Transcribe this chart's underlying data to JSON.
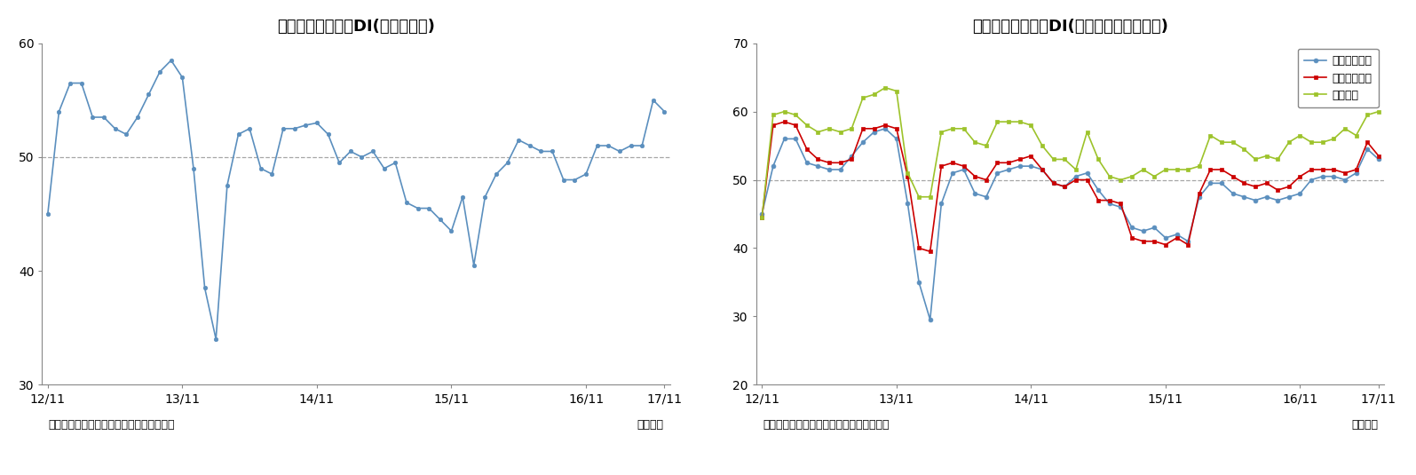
{
  "title1": "景気の先行き判断DI(季節調整値)",
  "title2": "景気の先行き判断DI(分野別、季節調整値)",
  "source_label": "（資料）内閣府「景気ウォッチャー調査」",
  "month_label": "（月次）",
  "xtick_labels": [
    "12/11",
    "13/11",
    "14/11",
    "15/11",
    "16/11",
    "17/11"
  ],
  "chart1_ylim": [
    30,
    60
  ],
  "chart1_yticks": [
    30,
    40,
    50,
    60
  ],
  "chart2_ylim": [
    20,
    70
  ],
  "chart2_yticks": [
    20,
    30,
    40,
    50,
    60,
    70
  ],
  "reference_line": 50,
  "chart1_color": "#5B8FBE",
  "chart1_data": [
    45.0,
    54.0,
    56.5,
    56.5,
    53.5,
    53.5,
    52.5,
    52.0,
    53.5,
    55.5,
    57.5,
    58.5,
    57.0,
    49.0,
    38.5,
    34.0,
    47.5,
    52.0,
    52.5,
    49.0,
    48.5,
    52.5,
    52.5,
    52.8,
    53.0,
    52.0,
    49.5,
    50.5,
    50.0,
    50.5,
    49.0,
    49.5,
    46.0,
    45.5,
    45.5,
    44.5,
    43.5,
    46.5,
    40.5,
    46.5,
    48.5,
    49.5,
    51.5,
    51.0,
    50.5,
    50.5,
    48.0,
    48.0,
    48.5,
    51.0,
    51.0,
    50.5,
    51.0,
    51.0,
    55.0,
    54.0
  ],
  "legend2_labels": [
    "家計動向関連",
    "企業動向関連",
    "雇用関連"
  ],
  "legend2_colors": [
    "#5B8FBE",
    "#CC0000",
    "#9DC32B"
  ],
  "legend2_markers": [
    "o",
    "s",
    "s"
  ],
  "chart2_household": [
    45.0,
    52.0,
    56.0,
    56.0,
    52.5,
    52.0,
    51.5,
    51.5,
    53.5,
    55.5,
    57.0,
    57.5,
    56.0,
    46.5,
    35.0,
    29.5,
    46.5,
    51.0,
    51.5,
    48.0,
    47.5,
    51.0,
    51.5,
    52.0,
    52.0,
    51.5,
    49.5,
    49.0,
    50.5,
    51.0,
    48.5,
    46.5,
    46.0,
    43.0,
    42.5,
    43.0,
    41.5,
    42.0,
    41.0,
    47.5,
    49.5,
    49.5,
    48.0,
    47.5,
    47.0,
    47.5,
    47.0,
    47.5,
    48.0,
    50.0,
    50.5,
    50.5,
    50.0,
    51.0,
    54.5,
    53.0
  ],
  "chart2_enterprise": [
    44.5,
    58.0,
    58.5,
    58.0,
    54.5,
    53.0,
    52.5,
    52.5,
    53.0,
    57.5,
    57.5,
    58.0,
    57.5,
    50.5,
    40.0,
    39.5,
    52.0,
    52.5,
    52.0,
    50.5,
    50.0,
    52.5,
    52.5,
    53.0,
    53.5,
    51.5,
    49.5,
    49.0,
    50.0,
    50.0,
    47.0,
    47.0,
    46.5,
    41.5,
    41.0,
    41.0,
    40.5,
    41.5,
    40.5,
    48.0,
    51.5,
    51.5,
    50.5,
    49.5,
    49.0,
    49.5,
    48.5,
    49.0,
    50.5,
    51.5,
    51.5,
    51.5,
    51.0,
    51.5,
    55.5,
    53.5
  ],
  "chart2_employment": [
    44.5,
    59.5,
    60.0,
    59.5,
    58.0,
    57.0,
    57.5,
    57.0,
    57.5,
    62.0,
    62.5,
    63.5,
    63.0,
    51.0,
    47.5,
    47.5,
    57.0,
    57.5,
    57.5,
    55.5,
    55.0,
    58.5,
    58.5,
    58.5,
    58.0,
    55.0,
    53.0,
    53.0,
    51.5,
    57.0,
    53.0,
    50.5,
    50.0,
    50.5,
    51.5,
    50.5,
    51.5,
    51.5,
    51.5,
    52.0,
    56.5,
    55.5,
    55.5,
    54.5,
    53.0,
    53.5,
    53.0,
    55.5,
    56.5,
    55.5,
    55.5,
    56.0,
    57.5,
    56.5,
    59.5,
    60.0
  ]
}
